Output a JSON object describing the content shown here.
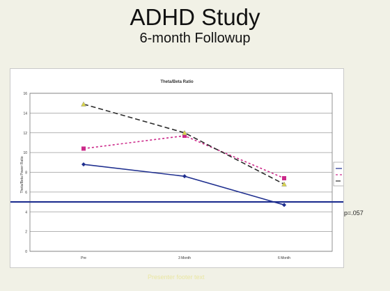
{
  "slide": {
    "title": "ADHD Study",
    "subtitle": "6-month Followup",
    "p_value_label": "p=.057",
    "footer": "Presenter footer text"
  },
  "chart_data": {
    "type": "line",
    "title": "Theta/Beta Ratio",
    "xlabel": "",
    "ylabel": "Theta/Beta Power Ratio",
    "categories": [
      "Pre",
      "3 Month",
      "6 Month"
    ],
    "ylim": [
      0,
      16
    ],
    "yticks": [
      0,
      2,
      4,
      6,
      8,
      10,
      12,
      14,
      16
    ],
    "grid": true,
    "legend_position": "right",
    "reference_line": 5,
    "series": [
      {
        "name": "EXP",
        "values": [
          8.8,
          7.6,
          4.7
        ],
        "color": "#1f2f8f",
        "dash": "",
        "marker": "diamond"
      },
      {
        "name": "Control",
        "values": [
          10.4,
          11.7,
          7.4
        ],
        "color": "#cc2a8a",
        "dash": "3,3",
        "marker": "square"
      },
      {
        "name": "Self-Select",
        "values": [
          14.9,
          12.0,
          6.8
        ],
        "color": "#2a2a2a",
        "dash": "7,4",
        "marker": "triangle"
      }
    ],
    "reference_line_color": "#1f2f8f"
  }
}
